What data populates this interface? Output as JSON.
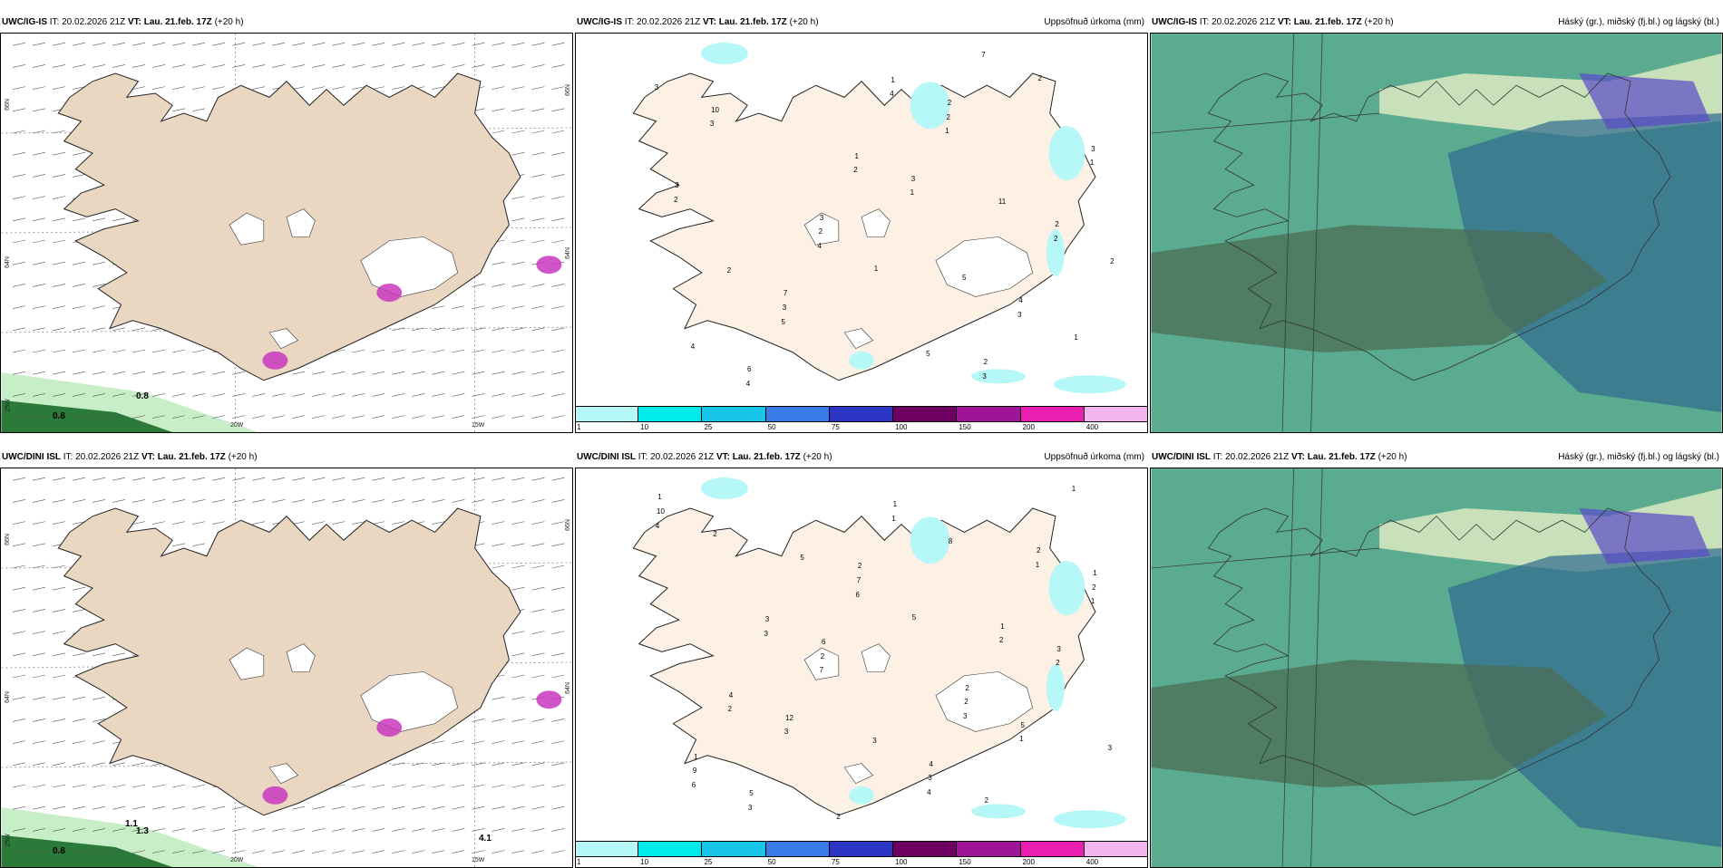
{
  "colorbar": {
    "ticks": [
      "1",
      "10",
      "25",
      "50",
      "75",
      "100",
      "150",
      "200",
      "400"
    ],
    "colors": [
      "#b6f7f7",
      "#00ecec",
      "#19c6e8",
      "#3a7de8",
      "#2b36c4",
      "#6d0060",
      "#a0149a",
      "#e81fb0",
      "#f5b6f0"
    ]
  },
  "panels": [
    {
      "id": "ig-is-wind",
      "model": "UWC/IG-IS",
      "it_label": "IT:",
      "it_value": "20.02.2026 21Z",
      "vt_label": "VT:",
      "vt_value": "Lau. 21.feb. 17Z",
      "lead": "(+20 h)",
      "right_title": "",
      "kind": "wind",
      "lat_left": [
        "66N",
        "64N",
        "25W"
      ],
      "lat_right": [
        "66N",
        "64N"
      ],
      "lon": [
        "20W",
        "15W"
      ],
      "values": [
        "0.8",
        "0.8"
      ]
    },
    {
      "id": "ig-is-precip",
      "model": "UWC/IG-IS",
      "it_label": "IT:",
      "it_value": "20.02.2026 21Z",
      "vt_label": "VT:",
      "vt_value": "Lau. 21.feb. 17Z",
      "lead": "(+20 h)",
      "right_title": "Uppsöfnuð úrkoma (mm)",
      "kind": "precip",
      "values": [
        "11",
        "5",
        "5",
        "4",
        "2",
        "4",
        "5",
        "2",
        "4",
        "3",
        "1",
        "2",
        "3",
        "7",
        "1",
        "1",
        "1",
        "2",
        "3",
        "4",
        "3",
        "2",
        "3",
        "2",
        "4",
        "3",
        "2",
        "1",
        "1",
        "3",
        "7",
        "6",
        "10",
        "3",
        "2",
        "1",
        "2",
        "2",
        "2",
        "3"
      ]
    },
    {
      "id": "ig-is-cloud",
      "model": "UWC/IG-IS",
      "it_label": "IT:",
      "it_value": "20.02.2026 21Z",
      "vt_label": "VT:",
      "vt_value": "Lau. 21.feb. 17Z",
      "lead": "(+20 h)",
      "right_title": "Háský (gr.), miðský (fj.bl.) og lágský (bl.)",
      "kind": "cloud"
    },
    {
      "id": "dini-wind",
      "model": "UWC/DINI ISL",
      "it_label": "IT:",
      "it_value": "20.02.2026 21Z",
      "vt_label": "VT:",
      "vt_value": "Lau. 21.feb. 17Z",
      "lead": "(+20 h)",
      "right_title": "",
      "kind": "wind",
      "lat_left": [
        "66N",
        "64N",
        "25W"
      ],
      "lat_right": [
        "66N",
        "64N"
      ],
      "lon": [
        "20W",
        "15W"
      ],
      "values": [
        "1.3",
        "0.8",
        "4.1",
        "1.1"
      ]
    },
    {
      "id": "dini-precip",
      "model": "UWC/DINI ISL",
      "it_label": "IT:",
      "it_value": "20.02.2026 21Z",
      "vt_label": "VT:",
      "vt_value": "Lau. 21.feb. 17Z",
      "lead": "(+20 h)",
      "right_title": "Uppsöfnuð úrkoma (mm)",
      "kind": "precip",
      "values": [
        "3",
        "1",
        "1",
        "2",
        "3",
        "4",
        "3",
        "2",
        "5",
        "3",
        "2",
        "6",
        "4",
        "1",
        "2",
        "1",
        "2",
        "3",
        "1",
        "6",
        "7",
        "3",
        "4",
        "9",
        "10",
        "2",
        "2",
        "1",
        "2",
        "4",
        "1",
        "7",
        "2",
        "3",
        "3",
        "1",
        "1",
        "1",
        "3",
        "5",
        "2",
        "8",
        "5",
        "2",
        "6",
        "12",
        "5",
        "2"
      ]
    },
    {
      "id": "dini-cloud",
      "model": "UWC/DINI ISL",
      "it_label": "IT:",
      "it_value": "20.02.2026 21Z",
      "vt_label": "VT:",
      "vt_value": "Lau. 21.feb. 17Z",
      "lead": "(+20 h)",
      "right_title": "Háský (gr.), miðský (fj.bl.) og lágský (bl.)",
      "kind": "cloud"
    }
  ]
}
